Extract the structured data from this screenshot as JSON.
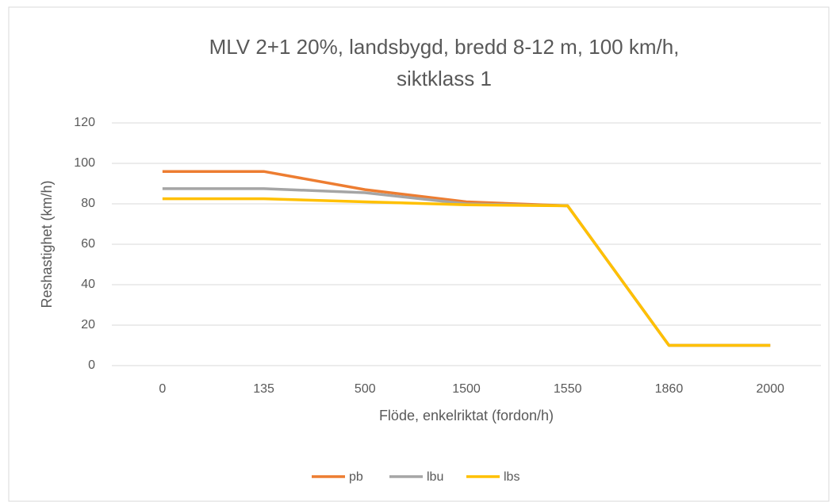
{
  "chart_data": {
    "type": "line",
    "title": [
      "MLV 2+1 20%, landsbygd, bredd 8-12 m, 100 km/h,",
      "siktklass 1"
    ],
    "x_label": "Flöde, enkelriktat (fordon/h)",
    "y_label": "Reshastighet (km/h)",
    "categories": [
      "0",
      "135",
      "500",
      "1500",
      "1550",
      "1860",
      "2000"
    ],
    "series": [
      {
        "name": "pb",
        "color": "#ED7D31",
        "values": [
          96,
          96,
          87,
          81,
          79,
          10,
          10
        ]
      },
      {
        "name": "lbu",
        "color": "#A5A5A5",
        "values": [
          87.5,
          87.5,
          85.5,
          80,
          79,
          10,
          10
        ]
      },
      {
        "name": "lbs",
        "color": "#FFC000",
        "values": [
          82.5,
          82.5,
          81,
          79.5,
          79,
          10,
          10
        ]
      }
    ],
    "ylim": [
      0,
      120
    ],
    "yticks": [
      0,
      20,
      40,
      60,
      80,
      100,
      120
    ],
    "grid": true,
    "legend": "bottom"
  }
}
